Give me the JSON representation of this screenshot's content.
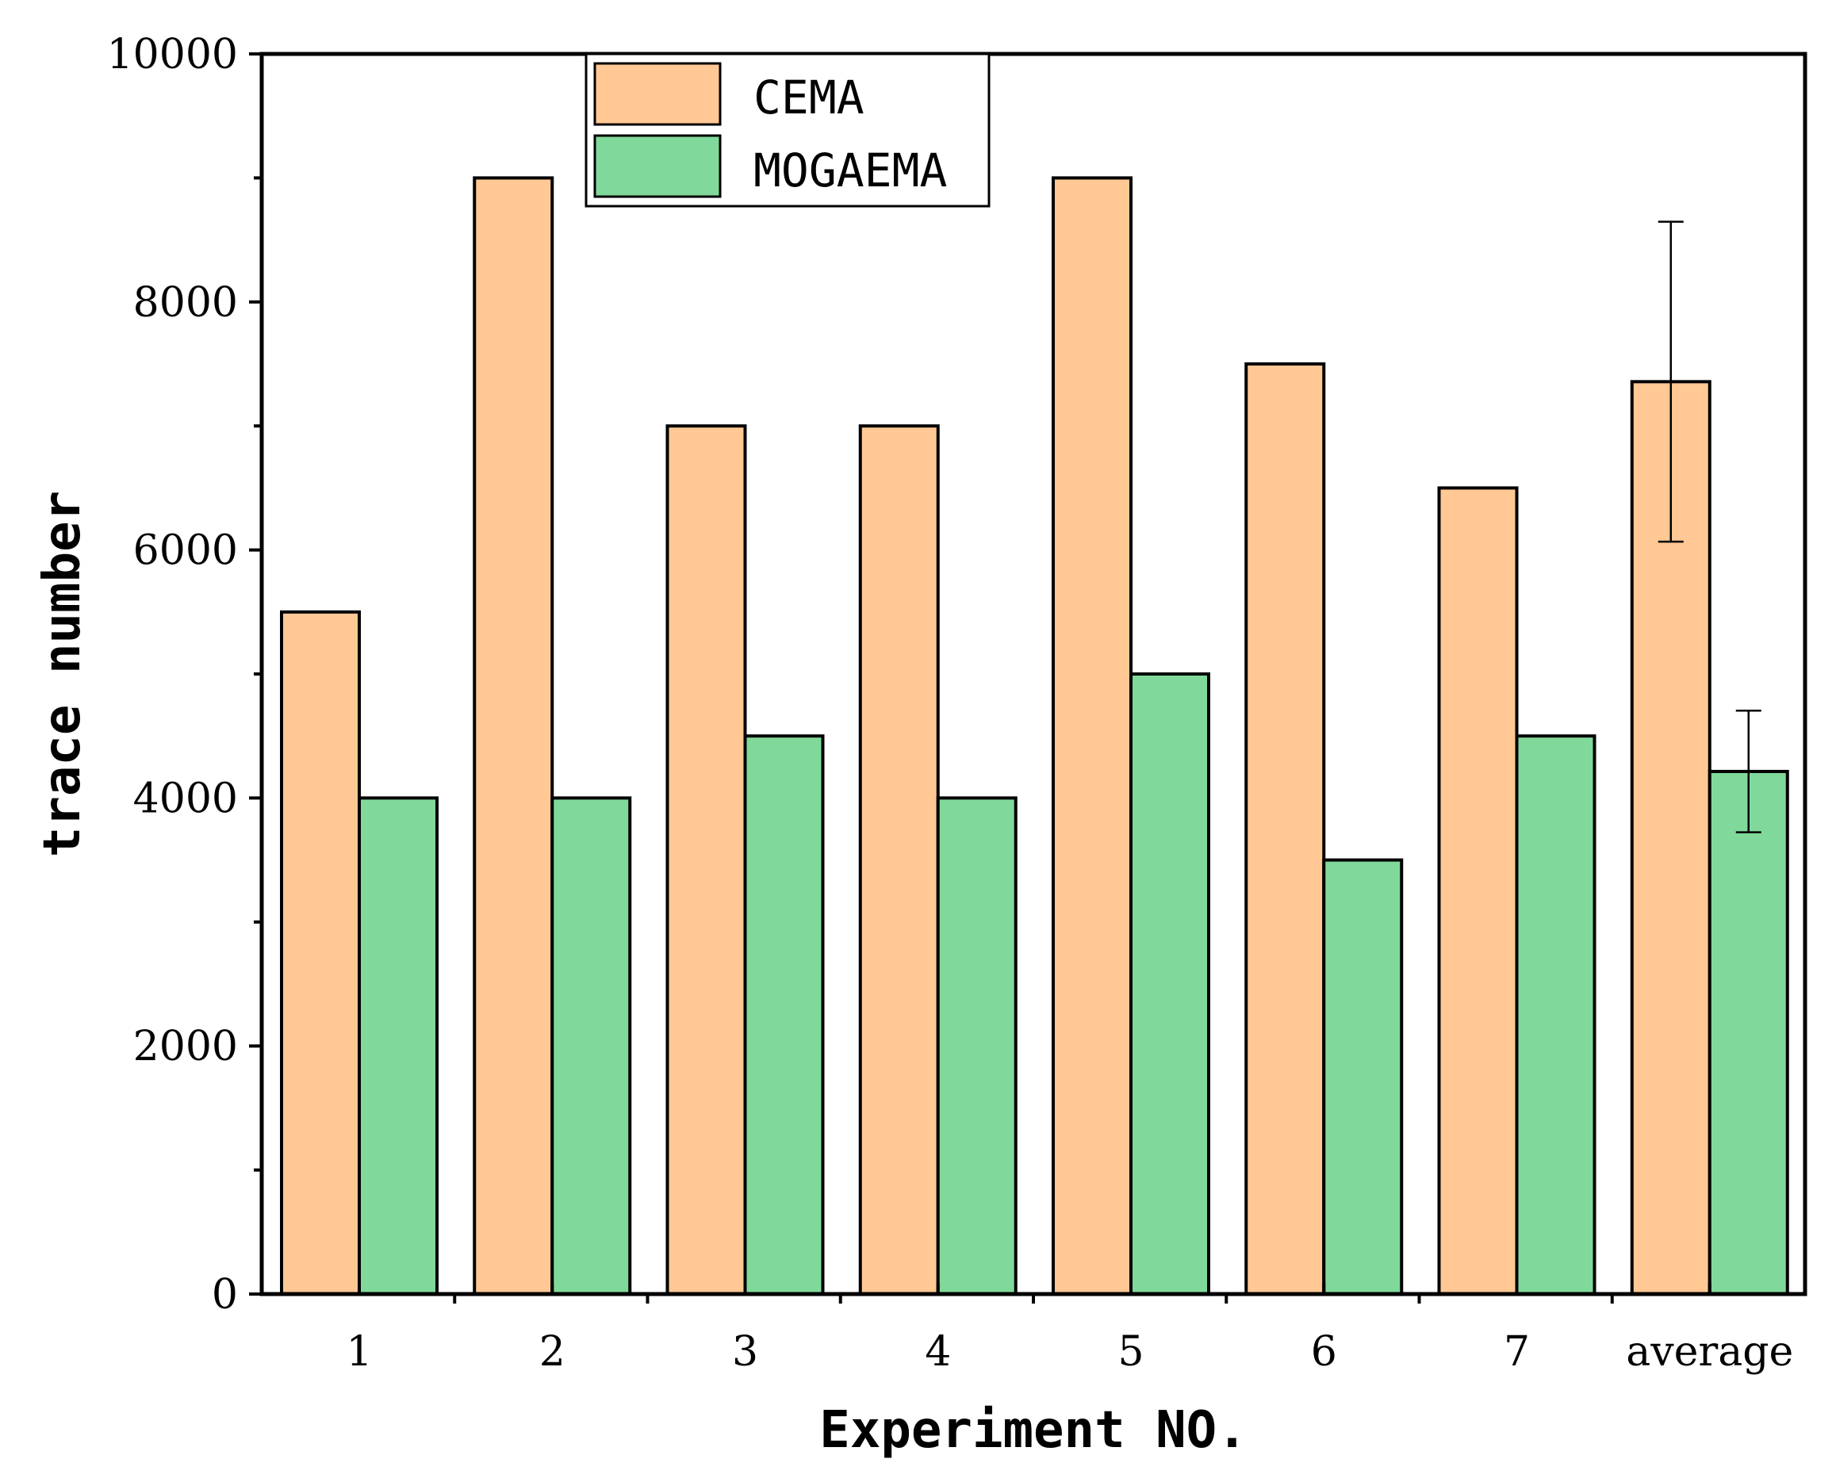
{
  "chart_data": {
    "type": "bar",
    "title": "",
    "xlabel": "Experiment NO.",
    "ylabel": "trace number",
    "categories": [
      "1",
      "2",
      "3",
      "4",
      "5",
      "6",
      "7",
      "average"
    ],
    "ylim": [
      0,
      10000
    ],
    "yticks": [
      0,
      2000,
      4000,
      6000,
      8000,
      10000
    ],
    "yticks_minor": [
      1000,
      3000,
      5000,
      7000,
      9000
    ],
    "grid": false,
    "legend_position": "top-left",
    "series": [
      {
        "name": "CEMA",
        "color": "#FFC894",
        "values": [
          5500,
          9000,
          7000,
          7000,
          9000,
          7500,
          6500,
          7357
        ],
        "error": [
          null,
          null,
          null,
          null,
          null,
          null,
          null,
          1290
        ]
      },
      {
        "name": "MOGAEMA",
        "color": "#80D99A",
        "values": [
          4000,
          4000,
          4500,
          4000,
          5000,
          3500,
          4500,
          4214
        ],
        "error": [
          null,
          null,
          null,
          null,
          null,
          null,
          null,
          490
        ]
      }
    ]
  }
}
